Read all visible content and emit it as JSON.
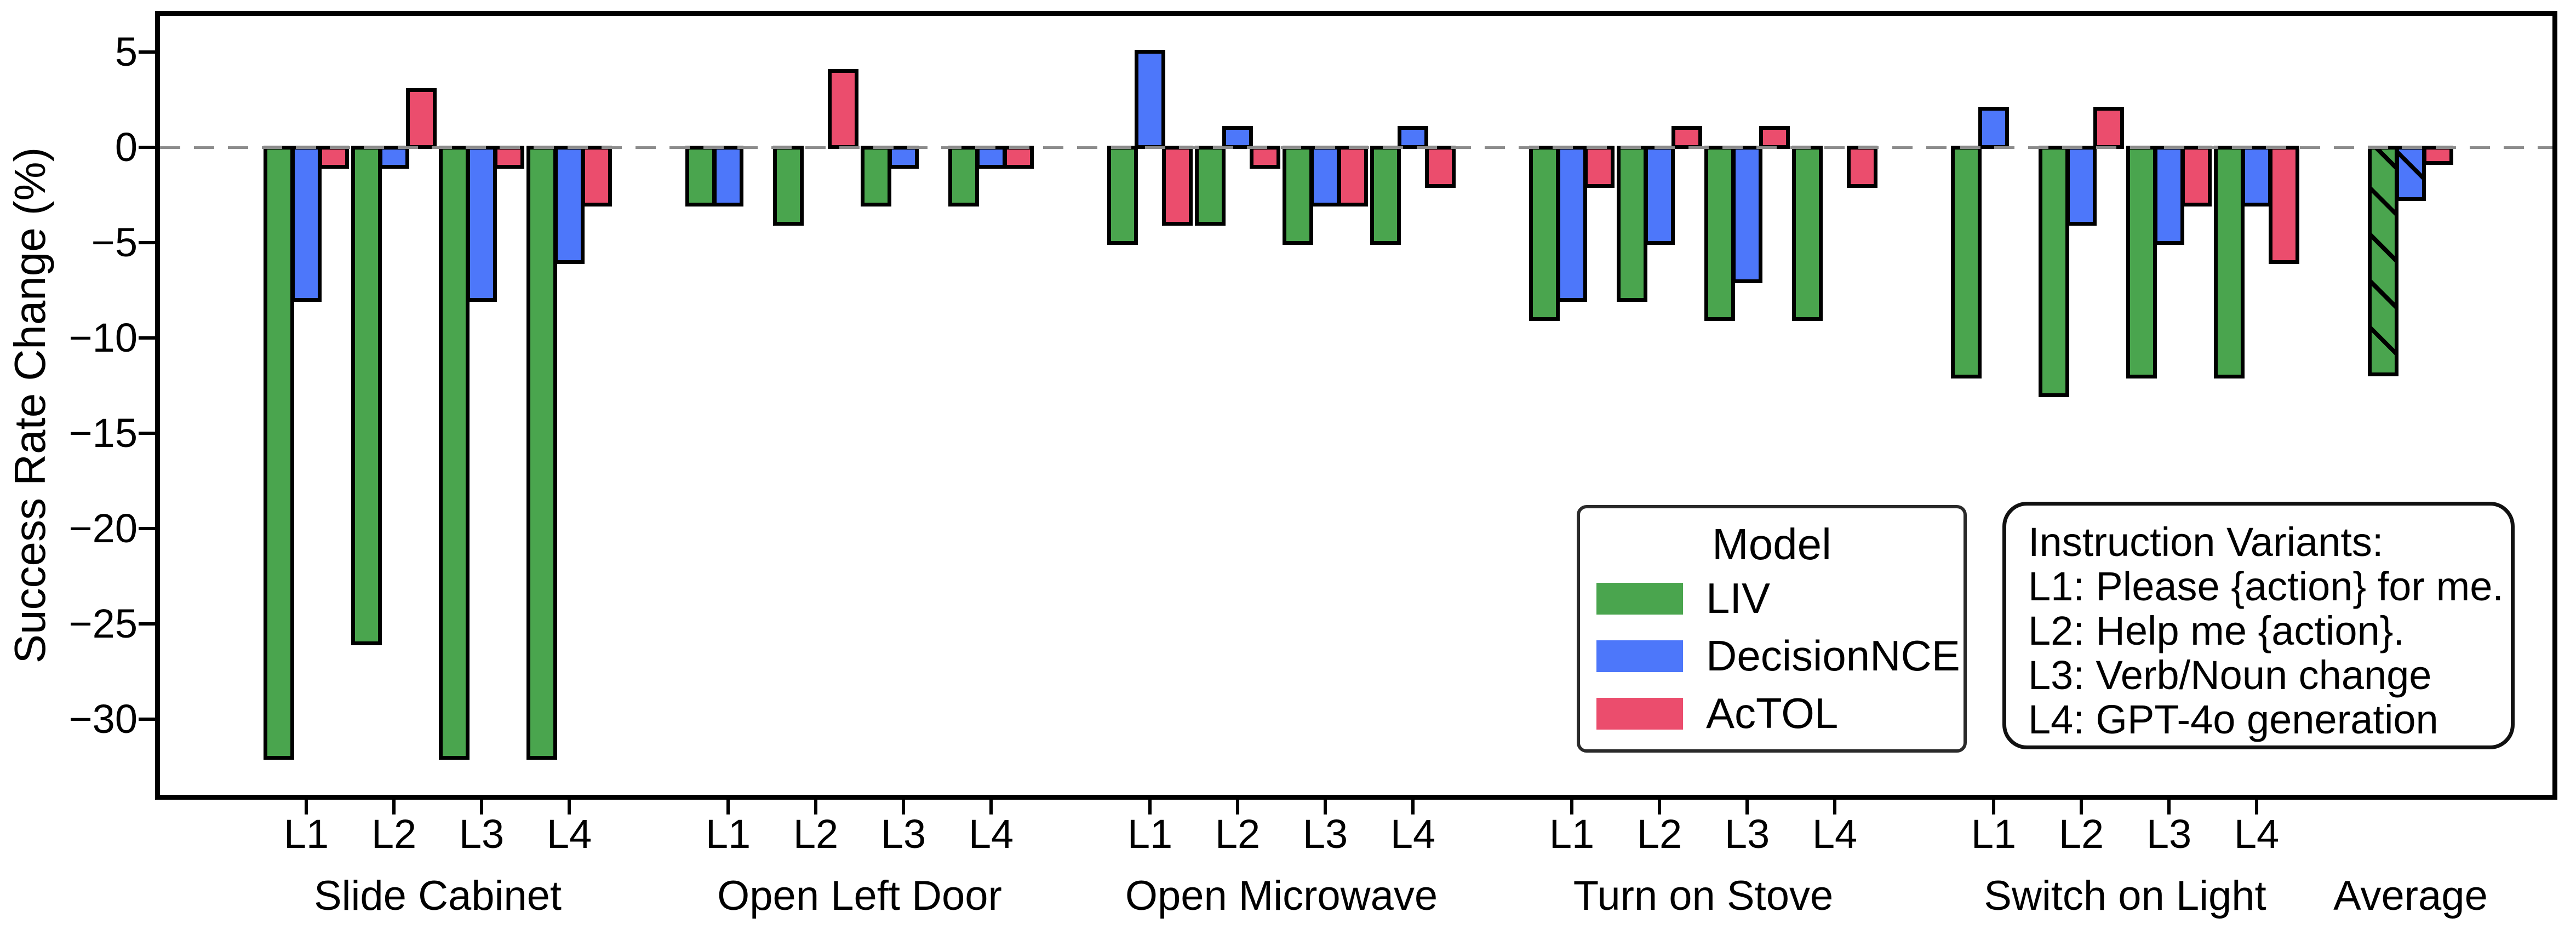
{
  "chart_data": {
    "type": "bar",
    "title": "",
    "xlabel": "",
    "ylabel": "Success Rate Change (%)",
    "ylim": [
      -34.2,
      7.2
    ],
    "yticks": [
      5,
      0,
      -5,
      -10,
      -15,
      -20,
      -25,
      -30
    ],
    "zero_line": "dashed gray at 0",
    "grid": "off",
    "legend_position": "lower right",
    "variants": [
      "L1",
      "L2",
      "L3",
      "L4"
    ],
    "series_names": [
      "LIV",
      "DecisionNCE",
      "AcTOL"
    ],
    "series_colors": {
      "LIV": "#4AA54E",
      "DecisionNCE": "#4D77FA",
      "AcTOL": "#EB4D6D"
    },
    "groups": [
      {
        "label": "Slide Cabinet",
        "hatched": false,
        "values": {
          "LIV": [
            -32,
            -26,
            -32,
            -32
          ],
          "DecisionNCE": [
            -8,
            -1,
            -8,
            -6
          ],
          "AcTOL": [
            -1,
            3,
            -1,
            -3
          ]
        }
      },
      {
        "label": "Open Left Door",
        "hatched": false,
        "values": {
          "LIV": [
            -3,
            -4,
            -3,
            -3
          ],
          "DecisionNCE": [
            -3,
            0,
            -1,
            -1
          ],
          "AcTOL": [
            0,
            4,
            0,
            -1
          ]
        }
      },
      {
        "label": "Open Microwave",
        "hatched": false,
        "values": {
          "LIV": [
            -5,
            -4,
            -5,
            -5
          ],
          "DecisionNCE": [
            5,
            1,
            -3,
            1
          ],
          "AcTOL": [
            -4,
            -1,
            -3,
            -2
          ]
        }
      },
      {
        "label": "Turn on Stove",
        "hatched": false,
        "values": {
          "LIV": [
            -9,
            -8,
            -9,
            -9
          ],
          "DecisionNCE": [
            -8,
            -5,
            -7,
            0
          ],
          "AcTOL": [
            -2,
            1,
            1,
            -2
          ]
        }
      },
      {
        "label": "Switch on Light",
        "hatched": false,
        "values": {
          "LIV": [
            -12,
            -13,
            -12,
            -12
          ],
          "DecisionNCE": [
            2,
            -4,
            -5,
            -3
          ],
          "AcTOL": [
            0,
            2,
            -3,
            -6
          ]
        }
      },
      {
        "label": "Average",
        "hatched": true,
        "values": {
          "LIV": [
            -11.9
          ],
          "DecisionNCE": [
            -2.7
          ],
          "AcTOL": [
            -0.8
          ]
        }
      }
    ],
    "legend": {
      "title": "Model",
      "entries": [
        {
          "name": "LIV",
          "color": "#4AA54E"
        },
        {
          "name": "DecisionNCE",
          "color": "#4D77FA"
        },
        {
          "name": "AcTOL",
          "color": "#EB4D6D"
        }
      ]
    },
    "instruction_box": {
      "lines": [
        "Instruction Variants:",
        "L1: Please {action} for me.",
        "L2: Help me {action}.",
        "L3: Verb/Noun change",
        "L4: GPT-4o generation"
      ]
    }
  }
}
